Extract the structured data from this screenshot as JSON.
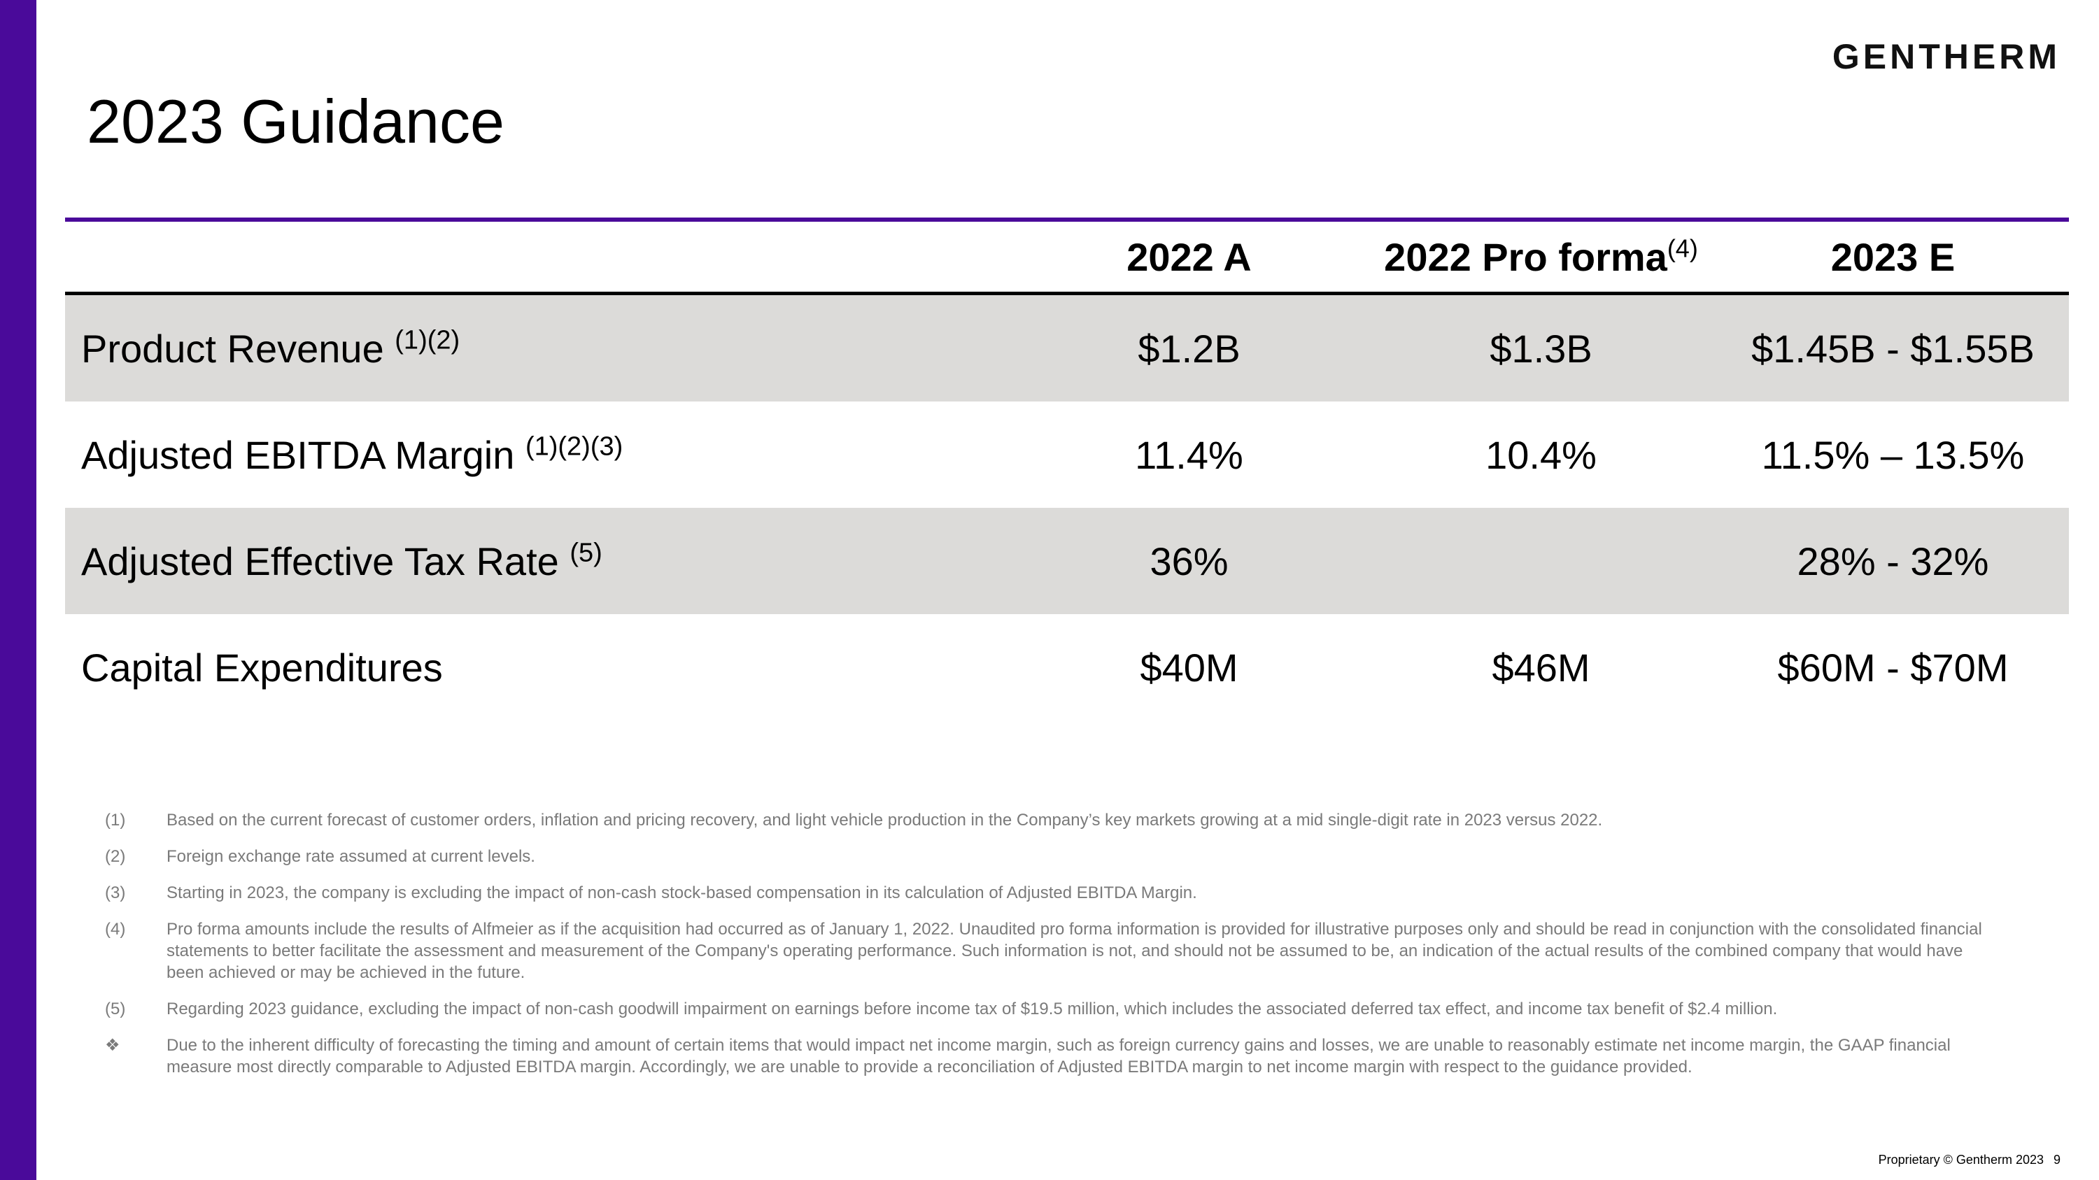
{
  "brand": {
    "logo_text": "GENTHERM",
    "accent_color": "#4a0a9a"
  },
  "slide": {
    "title": "2023 Guidance"
  },
  "table": {
    "headers": [
      {
        "label": "",
        "sup": ""
      },
      {
        "label": "2022 A",
        "sup": ""
      },
      {
        "label": "2022 Pro forma",
        "sup": "(4)"
      },
      {
        "label": "2023 E",
        "sup": ""
      }
    ],
    "rows": [
      {
        "label": "Product Revenue ",
        "sup": "(1)(2)",
        "a2022": "$1.2B",
        "pro_forma": "$1.3B",
        "e2023": "$1.45B - $1.55B"
      },
      {
        "label": "Adjusted EBITDA Margin ",
        "sup": "(1)(2)(3)",
        "a2022": "11.4%",
        "pro_forma": "10.4%",
        "e2023": "11.5% – 13.5%"
      },
      {
        "label": "Adjusted Effective Tax Rate ",
        "sup": "(5)",
        "a2022": "36%",
        "pro_forma": "",
        "e2023": "28% - 32%"
      },
      {
        "label": "Capital Expenditures",
        "sup": "",
        "a2022": "$40M",
        "pro_forma": "$46M",
        "e2023": "$60M - $70M"
      }
    ]
  },
  "footnotes": [
    {
      "mark": "(1)",
      "text": "Based on the current forecast of customer orders, inflation and pricing recovery, and light vehicle production in the Company’s key markets growing at a mid single-digit rate in 2023 versus 2022."
    },
    {
      "mark": "(2)",
      "text": "Foreign exchange rate assumed at current levels."
    },
    {
      "mark": "(3)",
      "text": "Starting in 2023, the company is excluding the impact of non-cash stock-based compensation in its calculation of Adjusted EBITDA Margin."
    },
    {
      "mark": "(4)",
      "text": "Pro forma amounts include the results of Alfmeier as if the acquisition had occurred as of January 1, 2022. Unaudited pro forma information is provided for illustrative purposes only and should be read in conjunction with the consolidated financial statements to better facilitate the assessment and measurement of the Company's operating performance. Such information is not, and should not be assumed to be, an indication of the actual results of the combined company that would have been achieved or may be achieved in the future."
    },
    {
      "mark": "(5)",
      "text": "Regarding 2023 guidance, excluding the impact of non-cash goodwill impairment on earnings before income tax of $19.5 million, which includes the associated deferred tax effect, and income tax benefit of $2.4 million."
    },
    {
      "mark": "❖",
      "text": "Due to the inherent difficulty of forecasting the timing and amount of certain items that would impact net income margin, such as foreign currency gains and losses, we are unable to reasonably estimate net income margin, the GAAP financial measure most directly comparable to Adjusted EBITDA margin. Accordingly, we are unable to provide a reconciliation of Adjusted EBITDA margin to net income margin with respect to the guidance provided."
    }
  ],
  "footer": {
    "copyright": "Proprietary © Gentherm 2023",
    "page_number": "9"
  }
}
